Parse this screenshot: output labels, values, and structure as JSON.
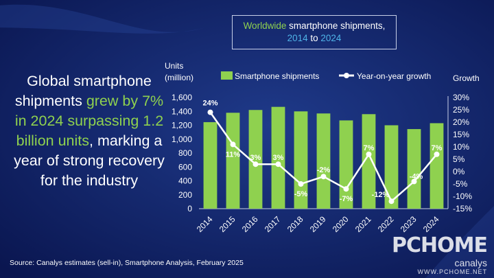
{
  "headline": {
    "part1": "Global smartphone shipments ",
    "highlight1": "grew by 7% in 2024 surpassing 1.2 billion units",
    "part2": ", marking a year of strong recovery for the industry"
  },
  "title": {
    "part1": "Worldwide",
    "part2": " smartphone shipments,",
    "year_start": "2014",
    "to": " to ",
    "year_end": "2024"
  },
  "source": "Source: Canalys estimates (sell-in), Smartphone Analysis, February 2025",
  "branding": {
    "watermark": "PCHOME",
    "watermark_sub": "WWW.PCHOME.NET",
    "logo": "canalys"
  },
  "colors": {
    "bar": "#8fd14f",
    "line": "#ffffff",
    "text": "#ffffff",
    "accent_green": "#8fd14f",
    "accent_blue": "#4fb3e8"
  },
  "chart_data": {
    "type": "bar",
    "categories": [
      "2014",
      "2015",
      "2016",
      "2017",
      "2018",
      "2019",
      "2020",
      "2021",
      "2022",
      "2023",
      "2024"
    ],
    "series": [
      {
        "name": "Smartphone shipments",
        "type": "bar",
        "axis": "left",
        "values": [
          1245,
          1380,
          1420,
          1465,
          1400,
          1370,
          1270,
          1360,
          1200,
          1145,
          1230
        ]
      },
      {
        "name": "Year-on-year growth",
        "type": "line",
        "axis": "right",
        "values": [
          24,
          11,
          3,
          3,
          -5,
          -2,
          -7,
          7,
          -12,
          -4,
          7
        ],
        "labels": [
          "24%",
          "11%",
          "3%",
          "3%",
          "-5%",
          "-2%",
          "-7%",
          "7%",
          "-12%",
          "-4%",
          "7%"
        ]
      }
    ],
    "y_left": {
      "label_line1": "Units",
      "label_line2": "(million)",
      "range": [
        0,
        1600
      ],
      "ticks": [
        "0",
        "200",
        "400",
        "600",
        "800",
        "1,000",
        "1,200",
        "1,400",
        "1,600"
      ]
    },
    "y_right": {
      "label": "Growth",
      "range": [
        -15,
        30
      ],
      "ticks": [
        "-15%",
        "-10%",
        "-5%",
        "0%",
        "5%",
        "10%",
        "15%",
        "20%",
        "25%",
        "30%"
      ]
    },
    "legend": "top"
  }
}
